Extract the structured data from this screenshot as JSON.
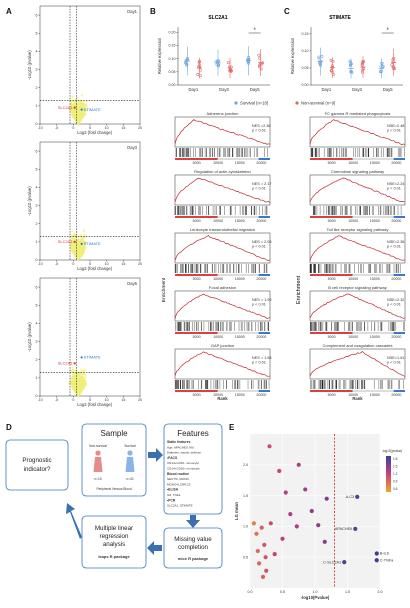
{
  "panels": {
    "A": "A",
    "B": "B",
    "C": "C",
    "D": "D",
    "E": "E"
  },
  "volcano": [
    {
      "day": "Day1",
      "gene_red": "SLC2A1",
      "gene_blue": "STIMATE"
    },
    {
      "day": "Day3",
      "gene_red": "SLC2A1",
      "gene_blue": "STIMATE"
    },
    {
      "day": "Day5",
      "gene_red": "SLC2A1",
      "gene_blue": "STIMATE"
    }
  ],
  "volcano_axes": {
    "ylabel": "-Log10 (pvalue)",
    "xlabel": "Log2 (fold change)",
    "xticks": [
      "-10",
      "-5",
      "0",
      "5",
      "10",
      "15",
      "20"
    ],
    "yticks": [
      "0",
      "1",
      "2",
      "3",
      "4",
      "5",
      "6"
    ]
  },
  "genes": {
    "B": "SLC2A1",
    "C": "STIMATE"
  },
  "scatter_axes": {
    "ylabel": "Relative expression",
    "days": [
      "Day1",
      "Day3",
      "Day5"
    ],
    "yticks_B": [
      "0.00",
      "0.05",
      "0.10",
      "0.15",
      "0.20"
    ],
    "yticks_C": [
      "0.00",
      "0.05",
      "0.10",
      "0.15"
    ],
    "sig": "*"
  },
  "legend": {
    "survival": "Survival (n=18)",
    "nonsurvival": "Non-survival (n=9)"
  },
  "gsea_B": [
    {
      "title": "Adherens junction",
      "nes": "NES =2.36",
      "p": "p < 0.01"
    },
    {
      "title": "Regulation of actin cytoskeleton",
      "nes": "NES = 2.17",
      "p": "p < 0.01"
    },
    {
      "title": "Leukocyte transendothelial migration",
      "nes": "NES = 2.05",
      "p": "p < 0.01"
    },
    {
      "title": "Focal adhesion",
      "nes": "NES = 1.99",
      "p": "p < 0.01"
    },
    {
      "title": "GAP junction",
      "nes": "NES = 1.98",
      "p": "p < 0.01"
    }
  ],
  "gsea_C": [
    {
      "title": "FC gamma R mediated phagocytosis",
      "nes": "NSE=2.48",
      "p": "p < 0.01"
    },
    {
      "title": "Chemokine signaling pathway",
      "nes": "NSE=2.24",
      "p": "p < 0.01"
    },
    {
      "title": "Toll like receptor signaling pathway",
      "nes": "NSE=2.36",
      "p": "p < 0.01"
    },
    {
      "title": "B cell receptor signaling pathway",
      "nes": "NSE=2.32",
      "p": "p < 0.01"
    },
    {
      "title": "Complement and coagulation cascades",
      "nes": "NSE=1.61",
      "p": "p < 0.01"
    }
  ],
  "gsea_axes": {
    "ylabel": "Enrichment",
    "xlabel": "Rank",
    "xticks": [
      "5000",
      "10000",
      "15000",
      "20000"
    ]
  },
  "flow": {
    "sample_title": "Sample",
    "nonsurvival": "Non-survival",
    "survival": "Survival",
    "n1": "n=15",
    "n2": "n=42",
    "blood": "Peripheral Venous Blood",
    "features_title": "Features",
    "features_lines": [
      "Static features",
      "Age, APACHEII, MV,",
      "Diabetes, sepsis, delirium",
      "•FACS",
      "CD14+CD16- monocyte",
      "CD14+CD16+ monocyte",
      "Blood routine",
      "NEUT%, MONO,",
      "MONO%,CRP,C3",
      "•ELISA",
      "IL6, TNFa",
      "•PCR",
      "SLC2A1, STIMATE"
    ],
    "prognostic": "Prognostic indicator?",
    "mlr_title": "Multiple linear regression analysis",
    "mlr_pkg": "leaps R package",
    "mvc_title": "Missing value completion",
    "mvc_pkg": "mice R package"
  },
  "chart_data": {
    "type": "scatter",
    "xlabel": "-log10(Pvalue)",
    "ylabel": "LG mean",
    "xlim": [
      0,
      2
    ],
    "ylim": [
      0,
      2.5
    ],
    "xticks": [
      0.0,
      0.5,
      1.0,
      1.5,
      2.0
    ],
    "yticks": [
      0.5,
      1.0,
      1.5,
      2.0
    ],
    "threshold_x": 1.3,
    "legend_title": "-log10(pvalue)",
    "legend_ticks": [
      1.8,
      1.5,
      1.2,
      0.9,
      0.6
    ],
    "points": [
      {
        "x": 0.06,
        "y": 1.05,
        "c": 0.2
      },
      {
        "x": 0.1,
        "y": 0.88,
        "c": 0.25
      },
      {
        "x": 0.12,
        "y": 0.6,
        "c": 0.3
      },
      {
        "x": 0.14,
        "y": 0.4,
        "c": 0.3
      },
      {
        "x": 0.18,
        "y": 0.98,
        "c": 0.35
      },
      {
        "x": 0.2,
        "y": 0.18,
        "c": 0.35
      },
      {
        "x": 0.22,
        "y": 0.7,
        "c": 0.4
      },
      {
        "x": 0.24,
        "y": 0.5,
        "c": 0.4
      },
      {
        "x": 0.25,
        "y": 0.28,
        "c": 0.4
      },
      {
        "x": 0.3,
        "y": 2.3,
        "c": 0.45
      },
      {
        "x": 0.32,
        "y": 1.05,
        "c": 0.45
      },
      {
        "x": 0.38,
        "y": 0.55,
        "c": 0.5
      },
      {
        "x": 0.45,
        "y": 1.9,
        "c": 0.5
      },
      {
        "x": 0.5,
        "y": 0.8,
        "c": 0.55
      },
      {
        "x": 0.55,
        "y": 1.55,
        "c": 0.55
      },
      {
        "x": 0.62,
        "y": 1.2,
        "c": 0.6
      },
      {
        "x": 0.72,
        "y": 1.0,
        "c": 0.6
      },
      {
        "x": 0.75,
        "y": 2.0,
        "c": 0.6
      },
      {
        "x": 0.85,
        "y": 1.6,
        "c": 0.65
      },
      {
        "x": 0.95,
        "y": 1.25,
        "c": 0.7
      },
      {
        "x": 1.05,
        "y": 1.02,
        "c": 0.7
      },
      {
        "x": 1.15,
        "y": 0.75,
        "c": 0.75
      },
      {
        "x": 1.18,
        "y": 1.45,
        "c": 0.75
      },
      {
        "x": 1.62,
        "y": 0.96,
        "c": 0.88,
        "label": "APACHEII"
      },
      {
        "x": 1.65,
        "y": 1.48,
        "c": 0.92,
        "label": "A-C3"
      },
      {
        "x": 1.45,
        "y": 0.42,
        "c": 0.9,
        "label": "C-SLC2A1"
      },
      {
        "x": 1.95,
        "y": 0.56,
        "c": 1.0,
        "label": "B-IL6"
      },
      {
        "x": 1.95,
        "y": 0.45,
        "c": 1.0,
        "label": "C-TNFa"
      }
    ]
  }
}
